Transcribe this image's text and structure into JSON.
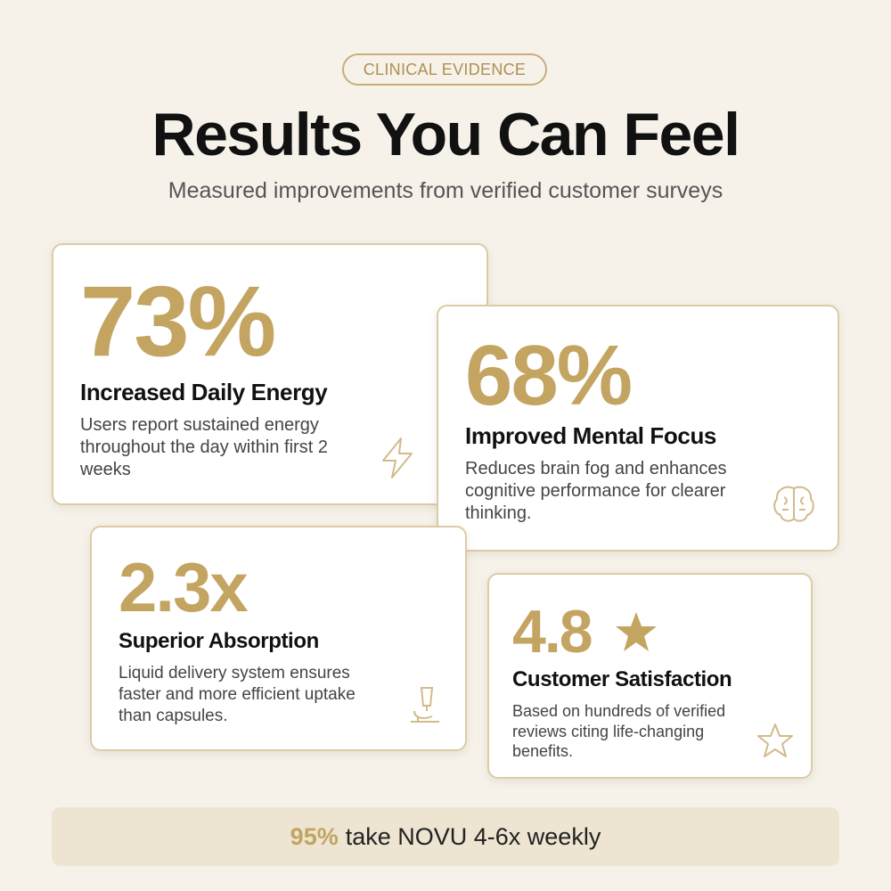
{
  "header": {
    "badge": "CLINICAL EVIDENCE",
    "title": "Results You Can Feel",
    "subtitle": "Measured improvements from verified customer surveys"
  },
  "cards": [
    {
      "stat": "73%",
      "title": "Increased Daily Energy",
      "description": "Users report sustained energy throughout the day within first 2 weeks"
    },
    {
      "stat": "68%",
      "title": "Improved Mental Focus",
      "description": "Reduces brain fog and enhances cognitive performance for clearer thinking."
    },
    {
      "stat": "2.3x",
      "title": "Superior Absorption",
      "description": "Liquid delivery system ensures faster and more efficient uptake than capsules."
    },
    {
      "stat": "4.8",
      "title": "Customer Satisfaction",
      "description": "Based on hundreds of verified reviews citing life-changing benefits."
    }
  ],
  "footer": {
    "highlight": "95%",
    "text": "take NOVU 4-6x weekly"
  }
}
